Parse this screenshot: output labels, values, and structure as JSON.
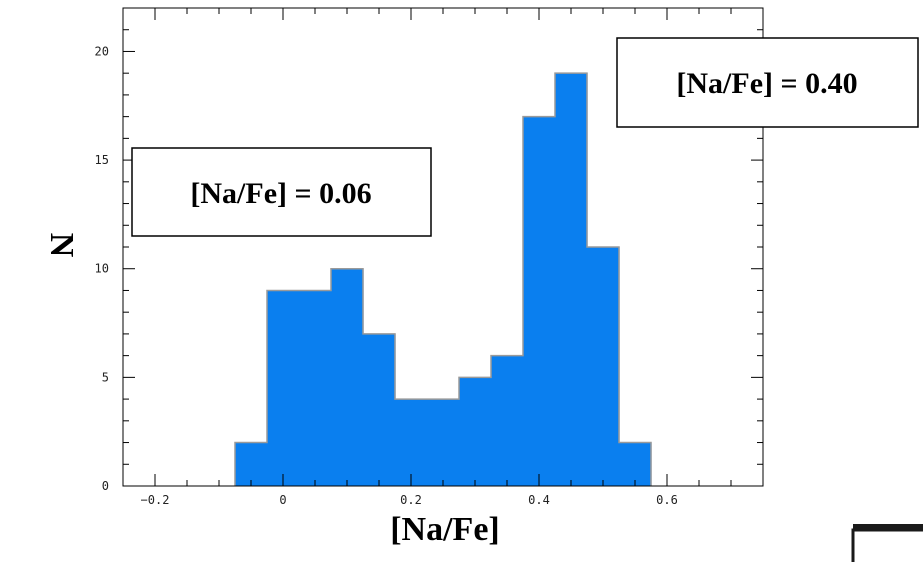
{
  "chart_data": {
    "type": "bar",
    "subtype": "histogram",
    "xlabel": "[Na/Fe]",
    "ylabel": "N",
    "xlim": [
      -0.25,
      0.75
    ],
    "ylim": [
      0,
      22
    ],
    "xticks": [
      "−0.2",
      "0",
      "0.2",
      "0.4",
      "0.6"
    ],
    "xtick_values": [
      -0.2,
      0,
      0.2,
      0.4,
      0.6
    ],
    "yticks": [
      "0",
      "5",
      "10",
      "15",
      "20"
    ],
    "ytick_values": [
      0,
      5,
      10,
      15,
      20
    ],
    "bin_width": 0.05,
    "bins": [
      {
        "x0": -0.075,
        "x1": -0.025,
        "count": 2
      },
      {
        "x0": -0.025,
        "x1": 0.025,
        "count": 9
      },
      {
        "x0": 0.025,
        "x1": 0.075,
        "count": 9
      },
      {
        "x0": 0.075,
        "x1": 0.125,
        "count": 10
      },
      {
        "x0": 0.125,
        "x1": 0.175,
        "count": 7
      },
      {
        "x0": 0.175,
        "x1": 0.225,
        "count": 4
      },
      {
        "x0": 0.225,
        "x1": 0.275,
        "count": 4
      },
      {
        "x0": 0.275,
        "x1": 0.325,
        "count": 5
      },
      {
        "x0": 0.325,
        "x1": 0.375,
        "count": 6
      },
      {
        "x0": 0.375,
        "x1": 0.425,
        "count": 17
      },
      {
        "x0": 0.425,
        "x1": 0.475,
        "count": 19
      },
      {
        "x0": 0.475,
        "x1": 0.525,
        "count": 11
      },
      {
        "x0": 0.525,
        "x1": 0.575,
        "count": 2
      }
    ],
    "fill_color": "#0a7fef",
    "edge_color": "#9a9a9a",
    "annotations": [
      {
        "text": "[Na/Fe] = 0.06"
      },
      {
        "text": "[Na/Fe] = 0.40"
      }
    ]
  }
}
